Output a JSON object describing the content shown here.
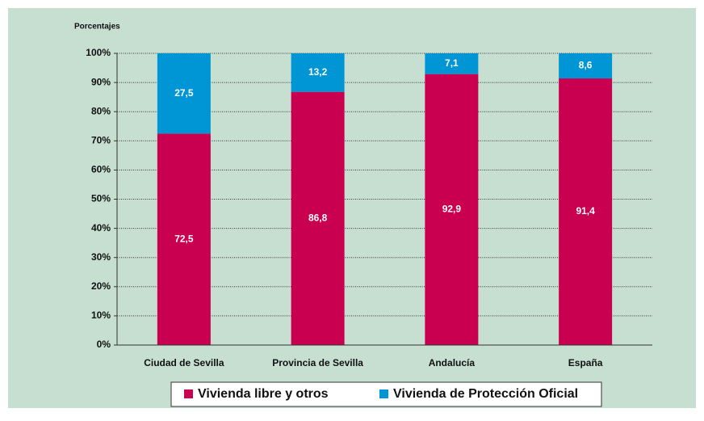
{
  "chart_data": {
    "type": "stacked_bar",
    "y_axis_label": "Porcentajes",
    "categories": [
      "Ciudad de Sevilla",
      "Provincia de Sevilla",
      "Andalucía",
      "España"
    ],
    "series": [
      {
        "name": "Vivienda libre y otros",
        "color": "#c8004f",
        "values": [
          72.5,
          86.8,
          92.9,
          91.4
        ],
        "value_labels": [
          "72,5",
          "86,8",
          "92,9",
          "91,4"
        ]
      },
      {
        "name": "Vivienda de Protección Oficial",
        "color": "#0096d6",
        "values": [
          27.5,
          13.2,
          7.1,
          8.6
        ],
        "value_labels": [
          "27,5",
          "13,2",
          "7,1",
          "8,6"
        ]
      }
    ],
    "ylim": [
      0,
      100
    ],
    "yticks": [
      {
        "value": 0,
        "label": "0%"
      },
      {
        "value": 10,
        "label": "10%"
      },
      {
        "value": 20,
        "label": "20%"
      },
      {
        "value": 30,
        "label": "30%"
      },
      {
        "value": 40,
        "label": "40%"
      },
      {
        "value": 50,
        "label": "50%"
      },
      {
        "value": 60,
        "label": "60%"
      },
      {
        "value": 70,
        "label": "70%"
      },
      {
        "value": 80,
        "label": "80%"
      },
      {
        "value": 90,
        "label": "90%"
      },
      {
        "value": 100,
        "label": "100%"
      }
    ],
    "grid": true,
    "legend": "bottom"
  }
}
